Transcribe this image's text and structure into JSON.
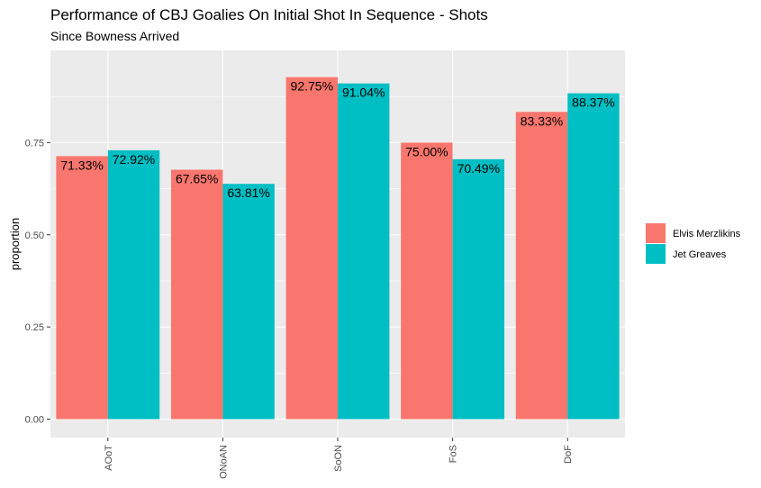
{
  "chart_data": {
    "type": "bar",
    "title": "Performance of CBJ Goalies On Initial Shot In Sequence - Shots",
    "subtitle": "Since Bowness Arrived",
    "xlabel": "",
    "ylabel": "proportion",
    "ylim": [
      -0.05,
      1.0
    ],
    "yticks": [
      0.0,
      0.25,
      0.5,
      0.75
    ],
    "ytick_labels": [
      "0.00",
      "0.25",
      "0.50",
      "0.75"
    ],
    "categories": [
      "AOoT",
      "ONoAN",
      "SoON",
      "FoS",
      "DoF"
    ],
    "series": [
      {
        "name": "Elvis Merzlikins",
        "color": "#F8766D",
        "values": [
          0.7133,
          0.6765,
          0.9275,
          0.75,
          0.8333
        ],
        "labels": [
          "71.33%",
          "67.65%",
          "92.75%",
          "75.00%",
          "83.33%"
        ]
      },
      {
        "name": "Jet Greaves",
        "color": "#00BFC4",
        "values": [
          0.7292,
          0.6381,
          0.9104,
          0.7049,
          0.8837
        ],
        "labels": [
          "72.92%",
          "63.81%",
          "91.04%",
          "70.49%",
          "88.37%"
        ]
      }
    ],
    "legend_position": "right",
    "grid": true,
    "panel_color": "#EBEBEB"
  }
}
